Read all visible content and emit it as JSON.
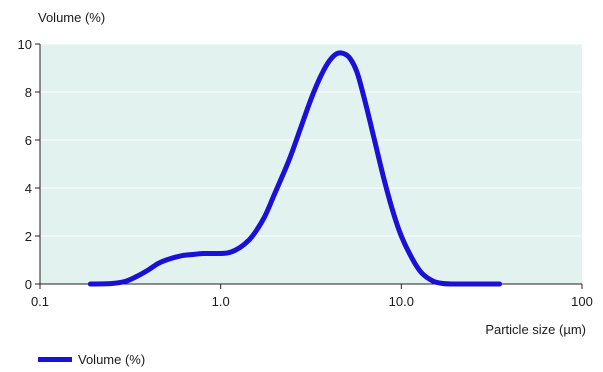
{
  "chart_data": {
    "type": "line",
    "title": "",
    "ylabel": "Volume (%)",
    "xlabel": "Particle size (µm)",
    "x_scale": "log",
    "xlim": [
      0.1,
      100
    ],
    "ylim": [
      0,
      10
    ],
    "x_tick_values": [
      0.1,
      1.0,
      10.0,
      100
    ],
    "x_tick_labels": [
      "0.1",
      "1.0",
      "10.0",
      "100"
    ],
    "y_tick_values": [
      0,
      2,
      4,
      6,
      8,
      10
    ],
    "y_tick_labels": [
      "0",
      "2",
      "4",
      "6",
      "8",
      "10"
    ],
    "grid": "horizontal",
    "plot_background": "#e2f2ef",
    "legend": {
      "position": "bottom-left",
      "entries": [
        "Volume (%)"
      ]
    },
    "series": [
      {
        "name": "Volume (%)",
        "color": "#1a10d6",
        "points": [
          [
            0.19,
            0.0
          ],
          [
            0.25,
            0.02
          ],
          [
            0.3,
            0.12
          ],
          [
            0.35,
            0.35
          ],
          [
            0.4,
            0.6
          ],
          [
            0.45,
            0.85
          ],
          [
            0.5,
            1.0
          ],
          [
            0.6,
            1.17
          ],
          [
            0.7,
            1.23
          ],
          [
            0.8,
            1.27
          ],
          [
            0.9,
            1.27
          ],
          [
            1.0,
            1.27
          ],
          [
            1.1,
            1.3
          ],
          [
            1.2,
            1.4
          ],
          [
            1.35,
            1.65
          ],
          [
            1.5,
            2.0
          ],
          [
            1.75,
            2.8
          ],
          [
            2.0,
            3.8
          ],
          [
            2.4,
            5.2
          ],
          [
            2.8,
            6.6
          ],
          [
            3.2,
            7.8
          ],
          [
            3.6,
            8.7
          ],
          [
            4.0,
            9.3
          ],
          [
            4.4,
            9.6
          ],
          [
            4.8,
            9.6
          ],
          [
            5.2,
            9.4
          ],
          [
            5.7,
            8.8
          ],
          [
            6.3,
            7.6
          ],
          [
            7.0,
            6.2
          ],
          [
            8.0,
            4.4
          ],
          [
            9.0,
            3.0
          ],
          [
            10.0,
            2.0
          ],
          [
            11.5,
            1.05
          ],
          [
            13.0,
            0.45
          ],
          [
            15.0,
            0.12
          ],
          [
            17.0,
            0.02
          ],
          [
            20.0,
            0.0
          ],
          [
            35.0,
            0.0
          ]
        ]
      }
    ]
  }
}
